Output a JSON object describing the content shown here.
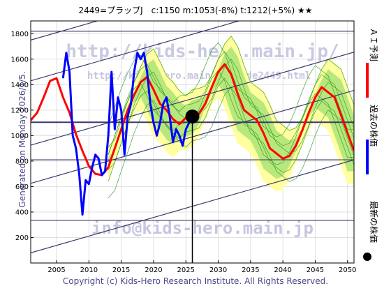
{
  "header": {
    "title": "2449=プラップJ　c:1150  m:1053(-8%)  t:1212(+5%)  ★★"
  },
  "side": {
    "generated": "Generated on Monday 2026/1/5."
  },
  "footer": {
    "copyright": "Copyright (c) Kids-Hero Research Institute. All Rights Reserved."
  },
  "watermarks": {
    "url": "http://kids-hero.main.jp/",
    "code_url": "http://kids-hero.main.jp/code2449.html",
    "email": "info@kids-hero.main.jp"
  },
  "legend": {
    "ai_forecast": "ＡＩ予測",
    "past_price": "過去の株価",
    "latest_price": "最新の株価"
  },
  "colors": {
    "forecast": "#ff0000",
    "past": "#0000ff",
    "band_fill": "#ffffa0",
    "band_fill_green": "#a0e070",
    "band_line": "#2a9a2a",
    "trend_line": "#3a3a6a"
  },
  "chart_data": {
    "type": "line",
    "xlim": [
      2001,
      2051
    ],
    "ylim": [
      0,
      1900
    ],
    "x_ticks": [
      2005,
      2010,
      2015,
      2020,
      2025,
      2030,
      2035,
      2040,
      2045,
      2050
    ],
    "y_ticks": [
      200,
      400,
      600,
      800,
      1000,
      1200,
      1400,
      1600,
      1800
    ],
    "current": {
      "x": 2026,
      "y": 1150
    },
    "horizontal_lines": [
      335,
      810,
      1105,
      1820
    ],
    "trend_lines": [
      {
        "x": [
          2001,
          2051
        ],
        "y": [
          1750,
          2480
        ]
      },
      {
        "x": [
          2001,
          2051
        ],
        "y": [
          1430,
          2160
        ]
      },
      {
        "x": [
          2001,
          2051
        ],
        "y": [
          925,
          1655
        ]
      },
      {
        "x": [
          2001,
          2051
        ],
        "y": [
          625,
          1355
        ]
      },
      {
        "x": [
          2001,
          2051
        ],
        "y": [
          80,
          810
        ]
      }
    ],
    "series": [
      {
        "name": "ＡＩ予測",
        "x": [
          2001,
          2002,
          2003,
          2004,
          2005,
          2006,
          2007,
          2008,
          2009,
          2010,
          2011,
          2012,
          2013,
          2014,
          2015,
          2016,
          2017,
          2018,
          2019,
          2020,
          2021,
          2022,
          2023,
          2024,
          2025,
          2026,
          2027,
          2028,
          2029,
          2030,
          2031,
          2032,
          2033,
          2034,
          2035,
          2036,
          2037,
          2038,
          2039,
          2040,
          2041,
          2042,
          2043,
          2044,
          2045,
          2046,
          2047,
          2048,
          2049,
          2050,
          2051
        ],
        "y": [
          1120,
          1180,
          1300,
          1430,
          1450,
          1300,
          1180,
          1010,
          880,
          760,
          700,
          690,
          750,
          900,
          1050,
          1200,
          1320,
          1420,
          1460,
          1360,
          1250,
          1200,
          1130,
          1090,
          1140,
          1150,
          1170,
          1250,
          1380,
          1500,
          1560,
          1480,
          1330,
          1200,
          1160,
          1120,
          1020,
          900,
          860,
          820,
          840,
          920,
          1040,
          1180,
          1300,
          1380,
          1340,
          1300,
          1160,
          1020,
          880
        ]
      },
      {
        "name": "過去の株価",
        "x": [
          2006.0,
          2006.5,
          2007.0,
          2007.5,
          2008.0,
          2008.5,
          2009.0,
          2009.5,
          2010.0,
          2010.5,
          2011.0,
          2011.5,
          2012.0,
          2012.5,
          2013.0,
          2013.5,
          2014.0,
          2014.5,
          2015.0,
          2015.5,
          2016.0,
          2016.5,
          2017.0,
          2017.5,
          2018.0,
          2018.5,
          2019.0,
          2019.5,
          2020.0,
          2020.5,
          2021.0,
          2021.5,
          2022.0,
          2022.5,
          2023.0,
          2023.5,
          2024.0,
          2024.5,
          2025.0,
          2025.5,
          2026.0
        ],
        "y": [
          1450,
          1650,
          1500,
          1000,
          900,
          700,
          380,
          650,
          620,
          750,
          850,
          820,
          690,
          720,
          1000,
          1500,
          1050,
          1300,
          1200,
          850,
          1150,
          1250,
          1500,
          1650,
          1600,
          1650,
          1500,
          1250,
          1100,
          1000,
          1100,
          1250,
          1300,
          1150,
          950,
          1050,
          1000,
          920,
          1050,
          1100,
          1150
        ]
      }
    ]
  }
}
